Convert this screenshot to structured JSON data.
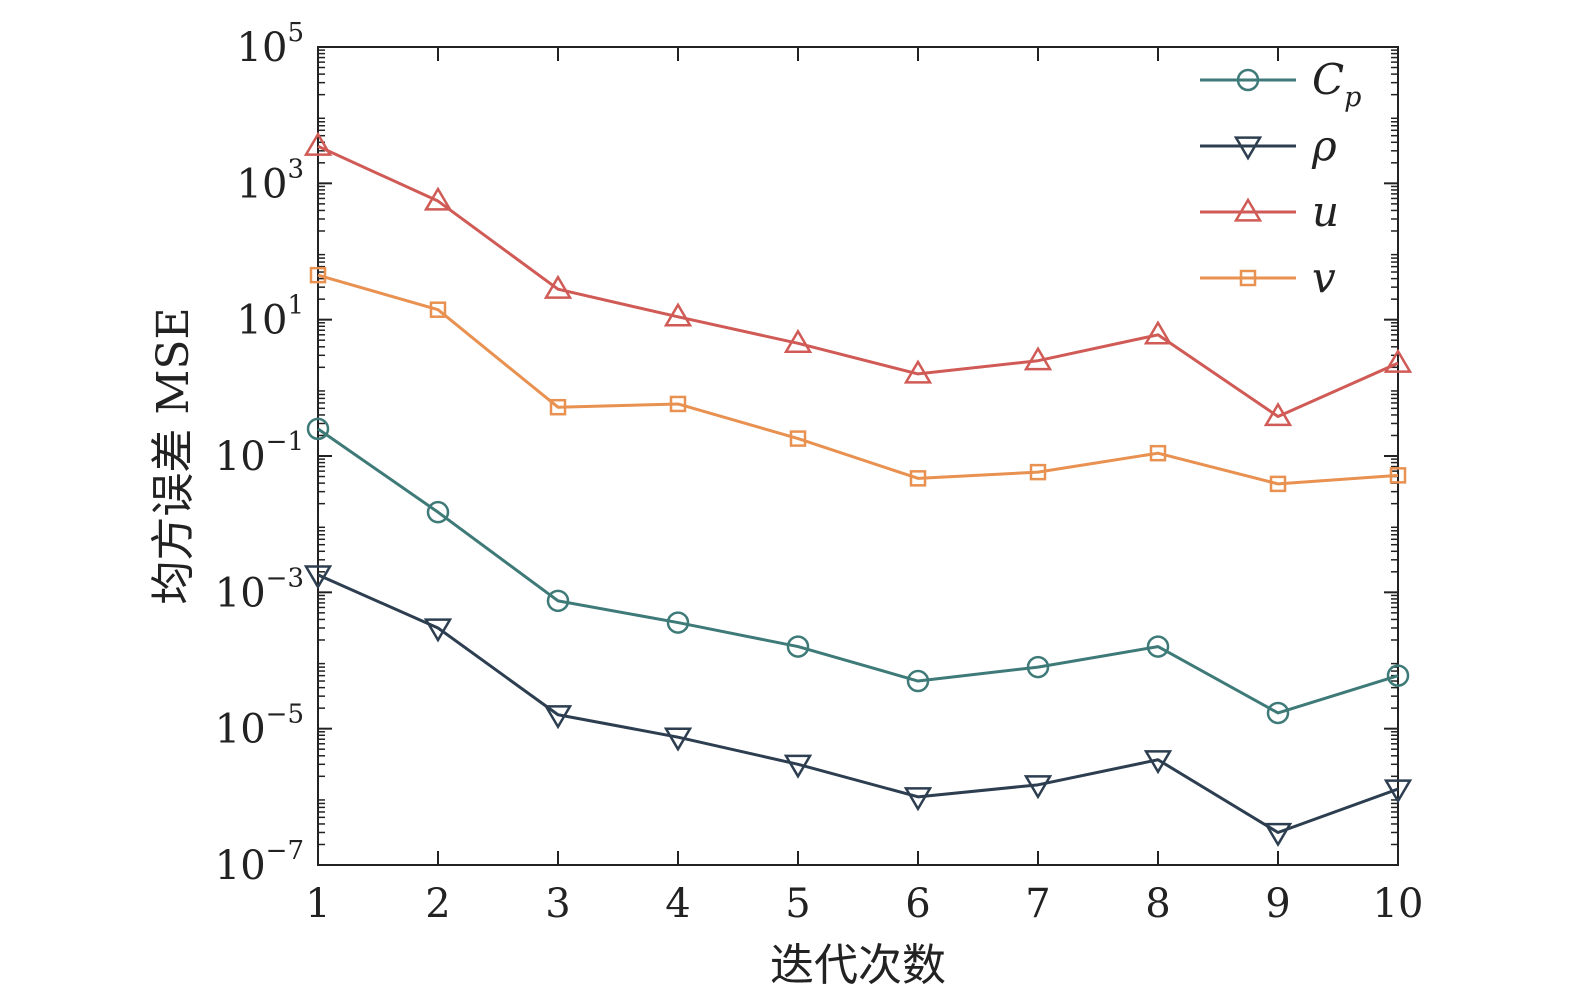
{
  "chart_data": {
    "type": "line",
    "xlabel": "迭代次数",
    "ylabel": "均方误差 MSE",
    "y_scale": "log",
    "x": [
      1,
      2,
      3,
      4,
      5,
      6,
      7,
      8,
      9,
      10
    ],
    "xlim": [
      1,
      10
    ],
    "ylim": [
      1e-07,
      100000.0
    ],
    "x_ticks": [
      "1",
      "2",
      "3",
      "4",
      "5",
      "6",
      "7",
      "8",
      "9",
      "10"
    ],
    "y_ticks": [
      {
        "value": 100000.0,
        "base": "10",
        "exp": "5"
      },
      {
        "value": 1000.0,
        "base": "10",
        "exp": "3"
      },
      {
        "value": 10.0,
        "base": "10",
        "exp": "1"
      },
      {
        "value": 0.1,
        "base": "10",
        "exp": "−1"
      },
      {
        "value": 0.001,
        "base": "10",
        "exp": "−3"
      },
      {
        "value": 1e-05,
        "base": "10",
        "exp": "−5"
      },
      {
        "value": 1e-07,
        "base": "10",
        "exp": "−7"
      }
    ],
    "legend_position": "top-right",
    "grid": false,
    "series": [
      {
        "name": "C",
        "sub": "p",
        "marker": "circle",
        "color": "#3e7a78",
        "values": [
          0.25,
          0.015,
          0.00075,
          0.00036,
          0.00016,
          5e-05,
          8e-05,
          0.00016,
          1.7e-05,
          6e-05
        ]
      },
      {
        "name": "ρ",
        "sub": "",
        "marker": "triangle-down",
        "color": "#2c3e50",
        "values": [
          0.0018,
          0.0003,
          1.6e-05,
          7.5e-06,
          3e-06,
          1e-06,
          1.5e-06,
          3.5e-06,
          3e-07,
          1.3e-06
        ]
      },
      {
        "name": "u",
        "sub": "",
        "marker": "triangle-up",
        "color": "#d05a55",
        "values": [
          3500,
          550,
          28,
          11,
          4.5,
          1.6,
          2.5,
          6,
          0.38,
          2.3
        ]
      },
      {
        "name": "v",
        "sub": "",
        "marker": "square",
        "color": "#e89150",
        "values": [
          45,
          14,
          0.52,
          0.58,
          0.18,
          0.047,
          0.058,
          0.11,
          0.039,
          0.052
        ]
      }
    ]
  }
}
